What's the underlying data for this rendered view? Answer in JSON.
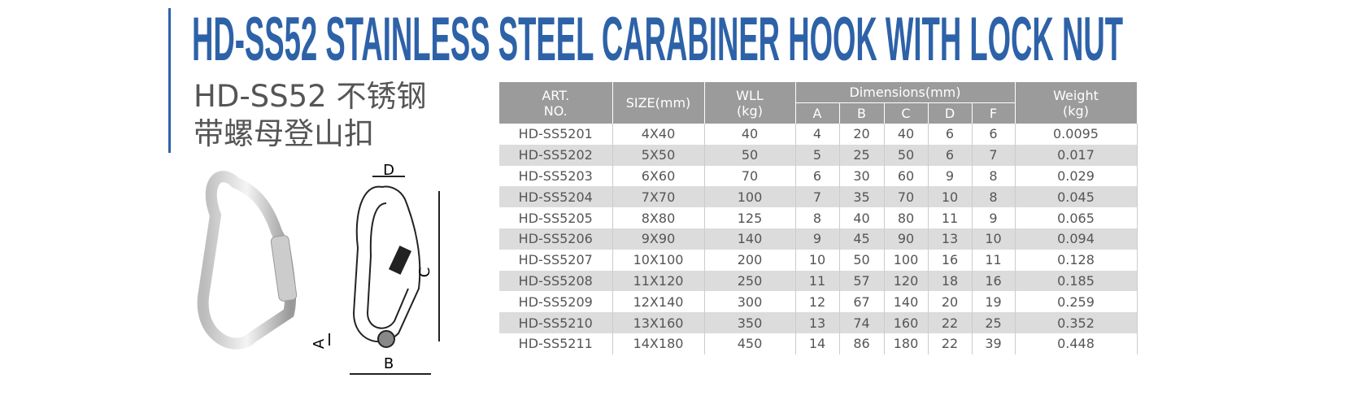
{
  "header": {
    "title": "HD-SS52 STAINLESS STEEL CARABINER HOOK WITH LOCK NUT",
    "subtitle": [
      "HD-SS52 不锈钢",
      "带螺母登山扣"
    ]
  },
  "diagram": {
    "labels": [
      "D",
      "C",
      "A",
      "B"
    ]
  },
  "table": {
    "columns": [
      [
        "ART.",
        "NO."
      ],
      [
        "SIZE(mm)"
      ],
      [
        "WLL",
        "(kg)"
      ],
      [
        "Dimensions(mm)"
      ],
      [
        "Weight",
        "(kg)"
      ]
    ],
    "subcolumns": [
      "A",
      "B",
      "C",
      "D",
      "F"
    ],
    "rows": [
      [
        "HD-SS5201",
        "4X40",
        40,
        4,
        20,
        40,
        6,
        6,
        0.0095
      ],
      [
        "HD-SS5202",
        "5X50",
        50,
        5,
        25,
        50,
        6,
        7,
        0.017
      ],
      [
        "HD-SS5203",
        "6X60",
        70,
        6,
        30,
        60,
        9,
        8,
        0.029
      ],
      [
        "HD-SS5204",
        "7X70",
        100,
        7,
        35,
        70,
        10,
        8,
        0.045
      ],
      [
        "HD-SS5205",
        "8X80",
        125,
        8,
        40,
        80,
        11,
        9,
        0.065
      ],
      [
        "HD-SS5206",
        "9X90",
        140,
        9,
        45,
        90,
        13,
        10,
        0.094
      ],
      [
        "HD-SS5207",
        "10X100",
        200,
        10,
        50,
        100,
        16,
        11,
        0.128
      ],
      [
        "HD-SS5208",
        "11X120",
        250,
        11,
        57,
        120,
        18,
        16,
        0.185
      ],
      [
        "HD-SS5209",
        "12X140",
        300,
        12,
        67,
        140,
        20,
        19,
        0.259
      ],
      [
        "HD-SS5210",
        "13X160",
        350,
        13,
        74,
        160,
        22,
        25,
        0.352
      ],
      [
        "HD-SS5211",
        "14X180",
        450,
        14,
        86,
        180,
        22,
        39,
        0.448
      ]
    ]
  }
}
